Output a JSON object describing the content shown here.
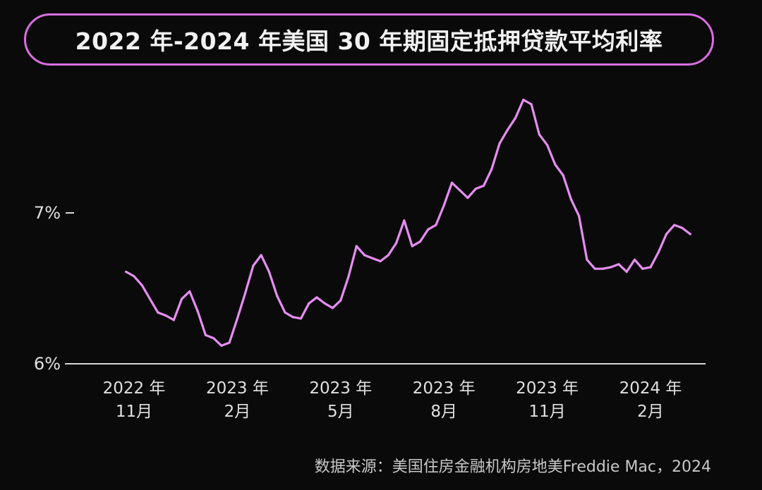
{
  "chart_data": {
    "type": "line",
    "title": "2022 年-2024 年美国 30 年期固定抵押贷款平均利率",
    "xlabel": "",
    "ylabel": "",
    "y_ticks": [
      "6%",
      "7%"
    ],
    "ylim": [
      6,
      7.88
    ],
    "x_ticks": [
      {
        "line1": "2022 年",
        "line2": "11月",
        "date": "2022-11-03"
      },
      {
        "line1": "2023 年",
        "line2": "2月",
        "date": "2023-02-02"
      },
      {
        "line1": "2023 年",
        "line2": "5月",
        "date": "2023-05-04"
      },
      {
        "line1": "2023 年",
        "line2": "8月",
        "date": "2023-08-03"
      },
      {
        "line1": "2023 年",
        "line2": "11月",
        "date": "2023-11-02"
      },
      {
        "line1": "2024 年",
        "line2": "2月",
        "date": "2024-02-01"
      }
    ],
    "series": [
      {
        "color": "#e58ef0",
        "points": [
          [
            "2022-10-27",
            6.61
          ],
          [
            "2022-11-03",
            6.58
          ],
          [
            "2022-11-10",
            6.52
          ],
          [
            "2022-11-17",
            6.43
          ],
          [
            "2022-11-24",
            6.34
          ],
          [
            "2022-12-01",
            6.32
          ],
          [
            "2022-12-08",
            6.29
          ],
          [
            "2022-12-15",
            6.43
          ],
          [
            "2022-12-22",
            6.48
          ],
          [
            "2022-12-29",
            6.35
          ],
          [
            "2023-01-05",
            6.19
          ],
          [
            "2023-01-12",
            6.17
          ],
          [
            "2023-01-19",
            6.12
          ],
          [
            "2023-01-26",
            6.14
          ],
          [
            "2023-02-02",
            6.3
          ],
          [
            "2023-02-09",
            6.47
          ],
          [
            "2023-02-16",
            6.65
          ],
          [
            "2023-02-23",
            6.72
          ],
          [
            "2023-03-02",
            6.61
          ],
          [
            "2023-03-09",
            6.45
          ],
          [
            "2023-03-16",
            6.34
          ],
          [
            "2023-03-23",
            6.31
          ],
          [
            "2023-03-30",
            6.3
          ],
          [
            "2023-04-06",
            6.4
          ],
          [
            "2023-04-13",
            6.44
          ],
          [
            "2023-04-20",
            6.4
          ],
          [
            "2023-04-27",
            6.37
          ],
          [
            "2023-05-04",
            6.42
          ],
          [
            "2023-05-11",
            6.58
          ],
          [
            "2023-05-18",
            6.78
          ],
          [
            "2023-05-25",
            6.72
          ],
          [
            "2023-06-01",
            6.7
          ],
          [
            "2023-06-08",
            6.68
          ],
          [
            "2023-06-15",
            6.72
          ],
          [
            "2023-06-22",
            6.8
          ],
          [
            "2023-06-29",
            6.95
          ],
          [
            "2023-07-06",
            6.78
          ],
          [
            "2023-07-13",
            6.81
          ],
          [
            "2023-07-20",
            6.89
          ],
          [
            "2023-07-27",
            6.92
          ],
          [
            "2023-08-03",
            7.05
          ],
          [
            "2023-08-10",
            7.2
          ],
          [
            "2023-08-17",
            7.15
          ],
          [
            "2023-08-24",
            7.1
          ],
          [
            "2023-08-31",
            7.16
          ],
          [
            "2023-09-07",
            7.18
          ],
          [
            "2023-09-14",
            7.29
          ],
          [
            "2023-09-21",
            7.46
          ],
          [
            "2023-09-28",
            7.55
          ],
          [
            "2023-10-05",
            7.63
          ],
          [
            "2023-10-12",
            7.75
          ],
          [
            "2023-10-19",
            7.72
          ],
          [
            "2023-10-26",
            7.52
          ],
          [
            "2023-11-02",
            7.45
          ],
          [
            "2023-11-09",
            7.32
          ],
          [
            "2023-11-16",
            7.25
          ],
          [
            "2023-11-23",
            7.09
          ],
          [
            "2023-11-30",
            6.98
          ],
          [
            "2023-12-07",
            6.69
          ],
          [
            "2023-12-14",
            6.63
          ],
          [
            "2023-12-21",
            6.63
          ],
          [
            "2023-12-28",
            6.64
          ],
          [
            "2024-01-04",
            6.66
          ],
          [
            "2024-01-11",
            6.61
          ],
          [
            "2024-01-18",
            6.69
          ],
          [
            "2024-01-25",
            6.63
          ],
          [
            "2024-02-01",
            6.64
          ],
          [
            "2024-02-08",
            6.74
          ],
          [
            "2024-02-15",
            6.86
          ],
          [
            "2024-02-22",
            6.92
          ],
          [
            "2024-02-29",
            6.9
          ],
          [
            "2024-03-07",
            6.86
          ]
        ]
      }
    ],
    "source": "数据来源：美国住房金融机构房地美Freddie Mac，2024"
  }
}
